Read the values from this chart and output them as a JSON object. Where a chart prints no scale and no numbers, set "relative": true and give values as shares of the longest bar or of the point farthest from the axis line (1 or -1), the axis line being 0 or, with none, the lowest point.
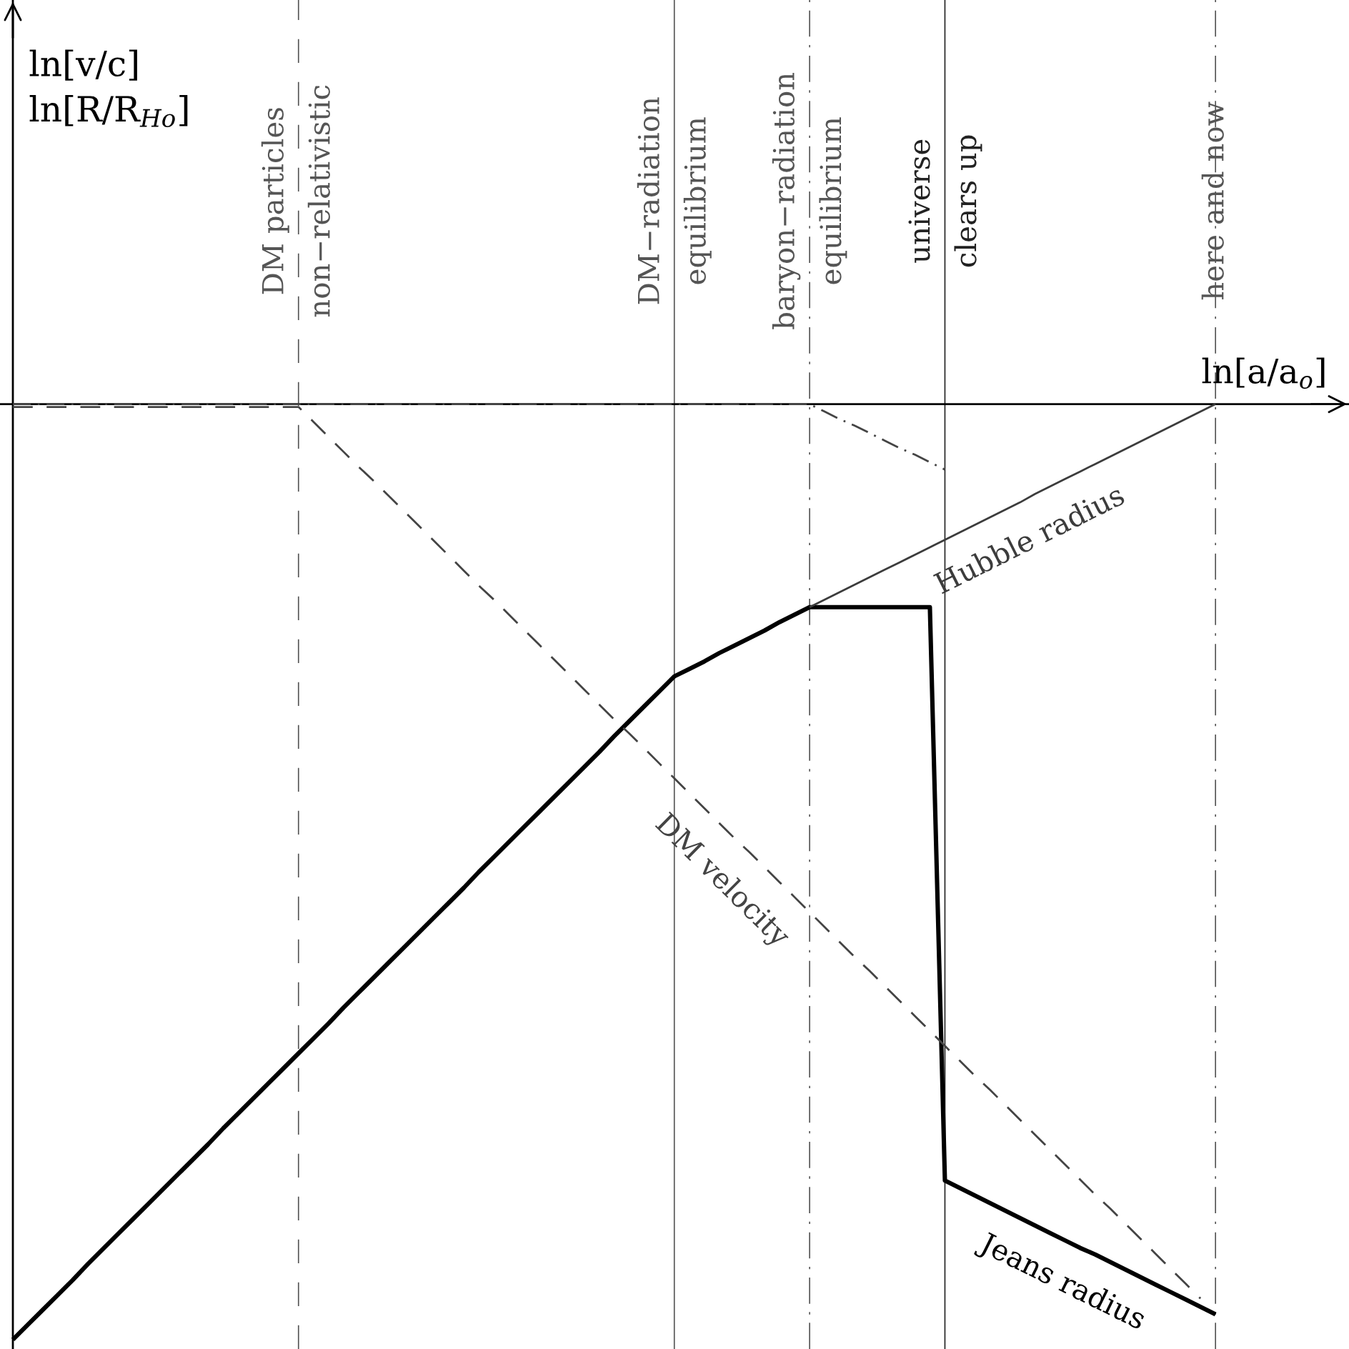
{
  "chart_data": {
    "type": "line",
    "relative": true,
    "xlabel": "ln[a/a$_{o}$]",
    "annotations": [
      "ln[v/c]\nln[R/R$_{Ho}$]"
    ],
    "categories": [
      null,
      null,
      null,
      null,
      null,
      null,
      null,
      null,
      null,
      null,
      null,
      null,
      null,
      null,
      null,
      null,
      null,
      null,
      null,
      "DM particles\nnon−relativistic",
      null,
      null,
      null,
      null,
      null,
      null,
      null,
      null,
      null,
      null,
      null,
      null,
      null,
      null,
      null,
      null,
      null,
      null,
      null,
      null,
      null,
      null,
      null,
      null,
      "DM−radiation\nequilibrium",
      null,
      null,
      null,
      null,
      null,
      null,
      null,
      null,
      "baryon−radiation\nequilibrium",
      null,
      null,
      null,
      null,
      null,
      null,
      null,
      null,
      "universe\nclears up",
      null,
      null,
      null,
      null,
      null,
      null,
      null,
      null,
      null,
      null,
      null,
      null,
      null,
      null,
      null,
      null,
      null,
      "here and now"
    ],
    "series": [
      {
        "name": "Jeans radius",
        "color": "#000000",
        "line_style": "solid",
        "values": [
          -1,
          -0.984,
          -0.968,
          -0.952,
          -0.936,
          -0.919,
          -0.903,
          -0.887,
          -0.871,
          -0.855,
          -0.839,
          -0.823,
          -0.807,
          -0.791,
          -0.774,
          -0.758,
          -0.742,
          -0.726,
          -0.71,
          -0.694,
          -0.678,
          -0.662,
          -0.645,
          -0.629,
          -0.613,
          -0.597,
          -0.581,
          -0.565,
          -0.549,
          -0.533,
          -0.517,
          -0.5,
          -0.484,
          -0.468,
          -0.452,
          -0.436,
          -0.42,
          -0.404,
          -0.388,
          -0.372,
          -0.355,
          -0.339,
          -0.323,
          -0.307,
          -0.291,
          -0.283,
          -0.275,
          -0.266,
          -0.258,
          -0.25,
          -0.242,
          -0.233,
          -0.225,
          -0.217,
          -0.217,
          -0.217,
          -0.217,
          -0.217,
          -0.217,
          -0.217,
          -0.217,
          -0.217,
          -0.83,
          -0.838,
          -0.846,
          -0.854,
          -0.862,
          -0.87,
          -0.878,
          -0.886,
          -0.894,
          -0.902,
          -0.909,
          -0.917,
          -0.925,
          -0.933,
          -0.941,
          -0.949,
          -0.957,
          -0.965,
          -0.973
        ]
      },
      {
        "name": "Hubble radius",
        "color": "#3c3c3c",
        "line_style": "solid",
        "values": [
          null,
          null,
          null,
          null,
          null,
          null,
          null,
          null,
          null,
          null,
          null,
          null,
          null,
          null,
          null,
          null,
          null,
          null,
          null,
          null,
          null,
          null,
          null,
          null,
          null,
          null,
          null,
          null,
          null,
          null,
          null,
          null,
          null,
          null,
          null,
          null,
          null,
          null,
          null,
          null,
          null,
          null,
          null,
          null,
          null,
          null,
          null,
          null,
          null,
          null,
          null,
          null,
          null,
          -0.217,
          -0.209,
          -0.201,
          -0.193,
          -0.185,
          -0.177,
          -0.169,
          -0.161,
          -0.153,
          -0.145,
          -0.137,
          -0.129,
          -0.121,
          -0.113,
          -0.105,
          -0.096,
          -0.088,
          -0.08,
          -0.072,
          -0.064,
          -0.056,
          -0.048,
          -0.04,
          -0.032,
          -0.024,
          -0.016,
          -0.008,
          0
        ]
      },
      {
        "name": "DM velocity",
        "color": "#444444",
        "line_style": "dashed",
        "values": [
          -0.003,
          -0.003,
          -0.003,
          -0.003,
          -0.003,
          -0.003,
          -0.003,
          -0.003,
          -0.003,
          -0.003,
          -0.003,
          -0.003,
          -0.003,
          -0.003,
          -0.003,
          -0.003,
          -0.003,
          -0.003,
          -0.003,
          -0.003,
          -0.019,
          -0.035,
          -0.051,
          -0.067,
          -0.082,
          -0.098,
          -0.114,
          -0.13,
          -0.146,
          -0.162,
          -0.178,
          -0.194,
          -0.209,
          -0.225,
          -0.241,
          -0.257,
          -0.273,
          -0.289,
          -0.305,
          -0.321,
          -0.337,
          -0.352,
          -0.368,
          -0.384,
          -0.4,
          -0.416,
          -0.432,
          -0.448,
          -0.464,
          -0.479,
          -0.495,
          -0.511,
          -0.527,
          -0.543,
          -0.559,
          -0.575,
          -0.591,
          -0.606,
          -0.622,
          -0.638,
          -0.654,
          -0.67,
          -0.686,
          -0.702,
          -0.718,
          -0.733,
          -0.749,
          -0.765,
          -0.781,
          -0.797,
          -0.813,
          -0.829,
          -0.845,
          -0.86,
          -0.876,
          -0.892,
          -0.908,
          -0.924,
          -0.94,
          -0.956,
          null
        ]
      },
      {
        "color": "#444444",
        "line_style": "dashdot",
        "values": [
          0,
          0,
          0,
          0,
          0,
          0,
          0,
          0,
          0,
          0,
          0,
          0,
          0,
          0,
          0,
          0,
          0,
          0,
          0,
          0,
          0,
          0,
          0,
          0,
          0,
          0,
          0,
          0,
          0,
          0,
          0,
          0,
          0,
          0,
          0,
          0,
          0,
          0,
          0,
          0,
          0,
          0,
          0,
          0,
          0,
          0,
          0,
          0,
          0,
          0,
          0,
          0,
          0,
          0,
          -0.008,
          -0.016,
          -0.023,
          -0.031,
          -0.039,
          -0.047,
          -0.054,
          -0.062,
          -0.07,
          null,
          null,
          null,
          null,
          null,
          null,
          null,
          null,
          null,
          null,
          null,
          null,
          null,
          null,
          null,
          null,
          null,
          null
        ]
      }
    ],
    "ref_lines": [
      {
        "axis": "x",
        "value": "DM particles\nnon−relativistic",
        "color": "#555555",
        "line_style": "dashed"
      },
      {
        "axis": "x",
        "value": "DM−radiation\nequilibrium",
        "color": "#555555",
        "line_style": "solid"
      },
      {
        "axis": "x",
        "value": "baryon−radiation\nequilibrium",
        "color": "#555555",
        "line_style": "dashdot"
      },
      {
        "axis": "x",
        "value": "universe\nclears up",
        "color": "#222222",
        "line_style": "solid"
      },
      {
        "axis": "x",
        "value": "here and now",
        "color": "#555555",
        "line_style": "dashdot"
      }
    ]
  }
}
